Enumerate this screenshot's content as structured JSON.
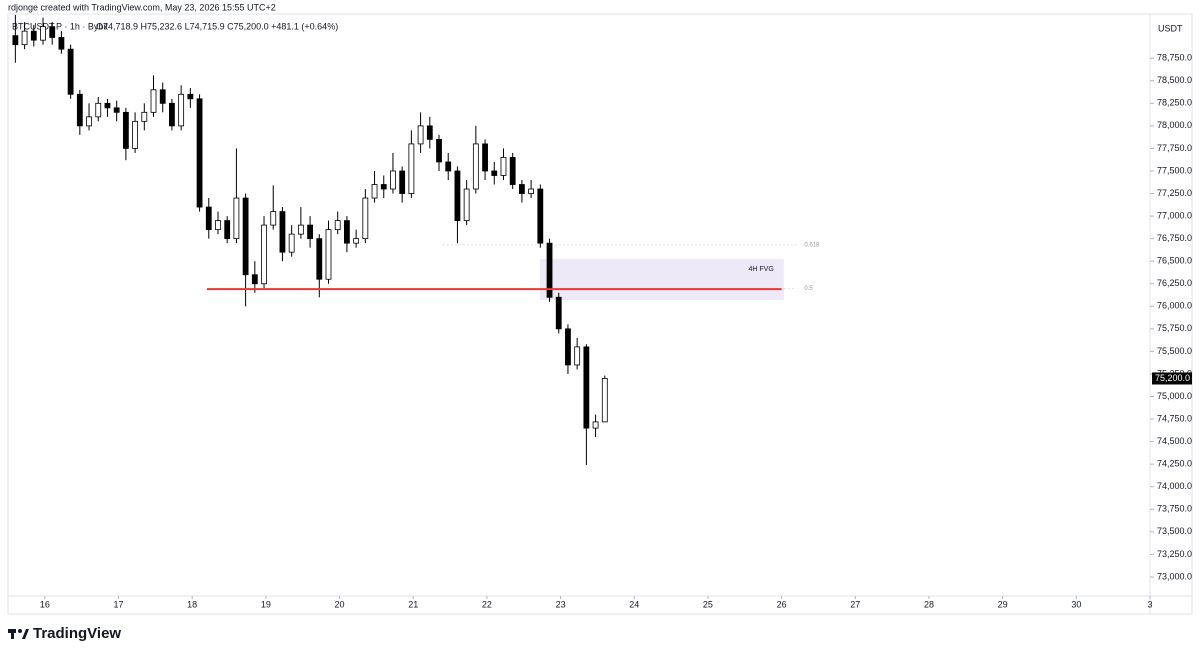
{
  "header": {
    "created": "rdjonge created with TradingView.com, May 23, 2026 15:55 UTC+2",
    "symbol": "BTCUSDT.P · 1h · Bybit",
    "ohlc": "O74,718.9 H75,232.6 L74,715.9 C75,200.0 +481.1 (+0.64%)"
  },
  "chart_data": {
    "type": "candlestick",
    "x": [
      15.6,
      15.725,
      15.85,
      15.975,
      16.1,
      16.225,
      16.35,
      16.475,
      16.6,
      16.725,
      16.85,
      16.975,
      17.1,
      17.225,
      17.35,
      17.475,
      17.6,
      17.725,
      17.85,
      17.975,
      18.1,
      18.225,
      18.35,
      18.475,
      18.6,
      18.725,
      18.85,
      18.975,
      19.1,
      19.225,
      19.35,
      19.475,
      19.6,
      19.725,
      19.85,
      19.975,
      20.1,
      20.225,
      20.35,
      20.475,
      20.6,
      20.725,
      20.85,
      20.975,
      21.1,
      21.225,
      21.35,
      21.475,
      21.6,
      21.725,
      21.85,
      21.975,
      22.1,
      22.225,
      22.35,
      22.475,
      22.6,
      22.725,
      22.85,
      22.975,
      23.1,
      23.225,
      23.35,
      23.475,
      23.6
    ],
    "open": [
      79000,
      78900,
      79050,
      78950,
      79100,
      78980,
      78850,
      78350,
      78000,
      78100,
      78250,
      78200,
      78150,
      77750,
      78050,
      78150,
      78400,
      78250,
      78000,
      78350,
      78300,
      77100,
      76850,
      76950,
      76750,
      77200,
      76350,
      76250,
      76900,
      77050,
      76600,
      76800,
      76900,
      76750,
      76300,
      76850,
      76950,
      76700,
      76750,
      77200,
      77350,
      77300,
      77500,
      77250,
      77800,
      78000,
      77850,
      77600,
      77500,
      76950,
      77300,
      77800,
      77500,
      77450,
      77650,
      77350,
      77250,
      77300,
      76700,
      76100,
      75750,
      75350,
      75550,
      74650,
      74718.9
    ],
    "high": [
      79230,
      79150,
      79120,
      79200,
      79150,
      79050,
      78900,
      78400,
      78250,
      78320,
      78300,
      78280,
      78200,
      78150,
      78250,
      78560,
      78480,
      78300,
      78450,
      78420,
      78350,
      77200,
      77050,
      77000,
      77750,
      77250,
      76500,
      77000,
      77340,
      77100,
      76900,
      77100,
      77000,
      76800,
      76950,
      77050,
      77000,
      76850,
      77300,
      77500,
      77450,
      77700,
      77550,
      77950,
      78150,
      78100,
      77900,
      77700,
      77550,
      77400,
      78000,
      77850,
      77600,
      77750,
      77700,
      77400,
      77400,
      77350,
      76750,
      76150,
      75800,
      75650,
      75580,
      74800,
      75232.6
    ],
    "low": [
      78700,
      78850,
      78880,
      78900,
      78900,
      78800,
      78300,
      77900,
      77950,
      78050,
      78100,
      78050,
      77620,
      77700,
      77950,
      78100,
      78150,
      77950,
      77950,
      78200,
      77050,
      76750,
      76800,
      76700,
      76700,
      76000,
      76150,
      76200,
      76850,
      76500,
      76550,
      76750,
      76650,
      76100,
      76250,
      76800,
      76600,
      76650,
      76700,
      77150,
      77200,
      77250,
      77150,
      77200,
      77700,
      77750,
      77500,
      77400,
      76700,
      76900,
      77250,
      77400,
      77350,
      77400,
      77300,
      77150,
      77200,
      76650,
      76050,
      75700,
      75250,
      75300,
      74240,
      74550,
      74715.9
    ],
    "close": [
      78900,
      79050,
      78950,
      79100,
      78980,
      78850,
      78350,
      78000,
      78100,
      78250,
      78200,
      78150,
      77750,
      78050,
      78150,
      78400,
      78250,
      78000,
      78350,
      78300,
      77100,
      76850,
      76950,
      76750,
      77200,
      76350,
      76250,
      76900,
      77050,
      76600,
      76800,
      76900,
      76750,
      76300,
      76850,
      76950,
      76700,
      76750,
      77200,
      77350,
      77300,
      77500,
      77250,
      77800,
      78000,
      77850,
      77600,
      77500,
      76950,
      77300,
      77800,
      77500,
      77450,
      77650,
      77350,
      77250,
      77300,
      76700,
      76100,
      75750,
      75350,
      75550,
      74650,
      74718.9,
      75200
    ],
    "up_color": "#ffffff",
    "down_color": "#000000",
    "xlim": [
      15.5,
      31
    ],
    "xticks": [
      16,
      17,
      18,
      19,
      20,
      21,
      22,
      23,
      24,
      25,
      26,
      27,
      28,
      29,
      30,
      {
        "value": 31,
        "label": "3"
      }
    ],
    "ylim": [
      72800,
      79240
    ],
    "yticks": [
      {
        "value": 73000,
        "label": "73,000.0"
      },
      {
        "value": 73250,
        "label": "73,250.0"
      },
      {
        "value": 73500,
        "label": "73,500.0"
      },
      {
        "value": 73750,
        "label": "73,750.0"
      },
      {
        "value": 74000,
        "label": "74,000.0"
      },
      {
        "value": 74250,
        "label": "74,250.0"
      },
      {
        "value": 74500,
        "label": "74,500.0"
      },
      {
        "value": 74750,
        "label": "74,750.0"
      },
      {
        "value": 75000,
        "label": "75,000.0"
      },
      {
        "value": 75250,
        "label": "75,250.0"
      },
      {
        "value": 75500,
        "label": "75,500.0"
      },
      {
        "value": 75750,
        "label": "75,750.0"
      },
      {
        "value": 76000,
        "label": "76,000.0"
      },
      {
        "value": 76250,
        "label": "76,250.0"
      },
      {
        "value": 76500,
        "label": "76,500.0"
      },
      {
        "value": 76750,
        "label": "76,750.0"
      },
      {
        "value": 77000,
        "label": "77,000.0"
      },
      {
        "value": 77250,
        "label": "77,250.0"
      },
      {
        "value": 77500,
        "label": "77,500.0"
      },
      {
        "value": 77750,
        "label": "77,750.0"
      },
      {
        "value": 78000,
        "label": "78,000.0"
      },
      {
        "value": 78250,
        "label": "78,250.0"
      },
      {
        "value": 78500,
        "label": "78,500.0"
      },
      {
        "value": 78750,
        "label": "78,750.0"
      }
    ],
    "y_axis_label": "USDT",
    "last_price": {
      "value": 75200,
      "label": "75,200.0"
    },
    "level_line": {
      "value": 76190,
      "x": [
        18.2,
        26.0
      ],
      "color": "#e53935"
    },
    "fvg": {
      "label": "4H FVG",
      "ylim": [
        76070,
        76525
      ],
      "xlim": [
        22.72,
        26.03
      ],
      "color": "#ede9f7"
    },
    "fib": [
      {
        "level": 0.618,
        "value": 76680,
        "x": [
          21.4,
          26.2
        ]
      },
      {
        "level": 0.5,
        "value": 76200,
        "x": [
          26.03,
          26.2
        ]
      }
    ]
  },
  "footer": {
    "brand": "TradingView"
  }
}
